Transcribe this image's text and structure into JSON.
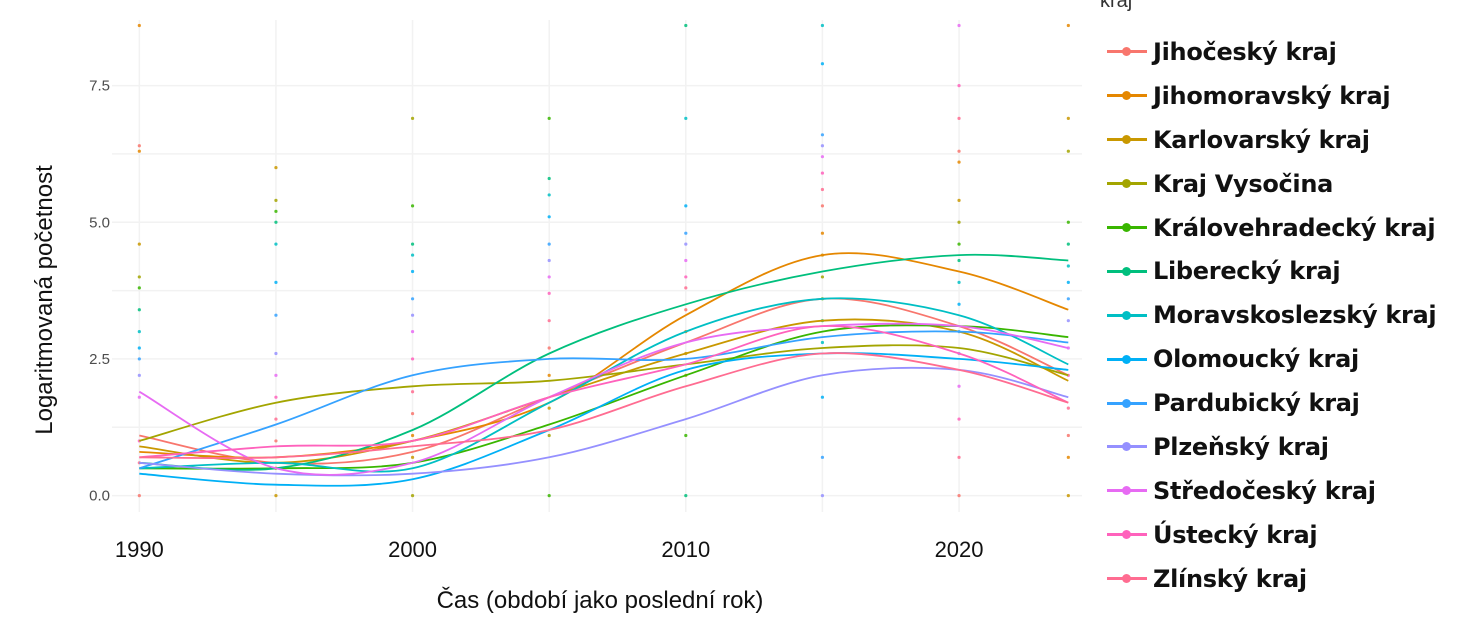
{
  "chart_data": {
    "type": "line",
    "title": "",
    "xlabel": "Čas (období jako poslední rok)",
    "ylabel": "Logaritmovaná početnost",
    "xlim": [
      1989,
      2024.5
    ],
    "ylim": [
      -0.3,
      8.7
    ],
    "x_ticks": [
      "1990",
      "2000",
      "2010",
      "2020"
    ],
    "y_ticks": [
      "0.0",
      "2.5",
      "5.0",
      "7.5"
    ],
    "x": [
      1990,
      1995,
      2000,
      2005,
      2010,
      2015,
      2020,
      2024
    ],
    "legend_title": "kraj",
    "legend_position": "right",
    "grid": true,
    "series": [
      {
        "name": "Jihočeský kraj",
        "color": "#F8766D",
        "values": [
          1.1,
          0.6,
          0.8,
          1.8,
          2.8,
          3.6,
          3.1,
          2.2
        ]
      },
      {
        "name": "Jihomoravský kraj",
        "color": "#E58700",
        "values": [
          0.8,
          0.7,
          1.0,
          1.7,
          3.3,
          4.4,
          4.1,
          3.4
        ]
      },
      {
        "name": "Karlovarský kraj",
        "color": "#C99800",
        "values": [
          0.9,
          0.6,
          1.0,
          1.8,
          2.6,
          3.2,
          3.0,
          2.1
        ]
      },
      {
        "name": "Kraj Vysočina",
        "color": "#A3A500",
        "values": [
          1.0,
          1.7,
          2.0,
          2.1,
          2.4,
          2.7,
          2.7,
          2.2
        ]
      },
      {
        "name": "Královehradecký kraj",
        "color": "#39B600",
        "values": [
          0.5,
          0.5,
          0.6,
          1.3,
          2.2,
          3.0,
          3.1,
          2.9
        ]
      },
      {
        "name": "Liberecký kraj",
        "color": "#00BF7D",
        "values": [
          0.6,
          0.5,
          1.2,
          2.6,
          3.5,
          4.1,
          4.4,
          4.3
        ]
      },
      {
        "name": "Moravskoslezský kraj",
        "color": "#00BFC4",
        "values": [
          0.5,
          0.6,
          0.5,
          1.7,
          3.0,
          3.6,
          3.3,
          2.4
        ]
      },
      {
        "name": "Olomoucký kraj",
        "color": "#00B0F6",
        "values": [
          0.4,
          0.2,
          0.3,
          1.2,
          2.3,
          2.6,
          2.5,
          2.3
        ]
      },
      {
        "name": "Pardubický kraj",
        "color": "#35A2FF",
        "values": [
          0.5,
          1.3,
          2.2,
          2.5,
          2.5,
          2.9,
          3.0,
          2.8
        ]
      },
      {
        "name": "Plzeňský kraj",
        "color": "#9590FF",
        "values": [
          0.6,
          0.4,
          0.4,
          0.7,
          1.4,
          2.2,
          2.3,
          1.8
        ]
      },
      {
        "name": "Středočeský kraj",
        "color": "#E76BF3",
        "values": [
          1.9,
          0.5,
          0.6,
          1.8,
          2.8,
          3.1,
          3.1,
          2.7
        ]
      },
      {
        "name": "Ústecký kraj",
        "color": "#FF62BC",
        "values": [
          0.7,
          0.9,
          1.0,
          1.8,
          2.4,
          3.1,
          2.6,
          1.7
        ]
      },
      {
        "name": "Zlínský kraj",
        "color": "#FF6C91",
        "values": [
          0.7,
          0.7,
          0.9,
          1.2,
          2.0,
          2.6,
          2.3,
          1.7
        ]
      }
    ],
    "scatter_points": [
      [
        1990,
        6.4
      ],
      [
        1990,
        6.3
      ],
      [
        1990,
        4.6
      ],
      [
        1990,
        4.0
      ],
      [
        1990,
        3.8
      ],
      [
        1990,
        3.4
      ],
      [
        1990,
        3.0
      ],
      [
        1990,
        2.7
      ],
      [
        1990,
        2.5
      ],
      [
        1990,
        2.2
      ],
      [
        1990,
        1.8
      ],
      [
        1990,
        1.0
      ],
      [
        1990,
        0.6
      ],
      [
        1990,
        0.0
      ],
      [
        1990,
        8.6
      ],
      [
        1995,
        6.0
      ],
      [
        1995,
        5.4
      ],
      [
        1995,
        5.2
      ],
      [
        1995,
        5.0
      ],
      [
        1995,
        4.6
      ],
      [
        1995,
        3.9
      ],
      [
        1995,
        3.3
      ],
      [
        1995,
        2.6
      ],
      [
        1995,
        2.2
      ],
      [
        1995,
        1.8
      ],
      [
        1995,
        1.4
      ],
      [
        1995,
        1.0
      ],
      [
        1995,
        0.5
      ],
      [
        1995,
        0.0
      ],
      [
        2000,
        6.9
      ],
      [
        2000,
        5.3
      ],
      [
        2000,
        4.6
      ],
      [
        2000,
        4.4
      ],
      [
        2000,
        4.1
      ],
      [
        2000,
        3.6
      ],
      [
        2000,
        3.3
      ],
      [
        2000,
        3.0
      ],
      [
        2000,
        2.5
      ],
      [
        2000,
        1.9
      ],
      [
        2000,
        1.5
      ],
      [
        2000,
        1.1
      ],
      [
        2000,
        0.7
      ],
      [
        2000,
        0.0
      ],
      [
        2005,
        6.9
      ],
      [
        2005,
        5.8
      ],
      [
        2005,
        5.5
      ],
      [
        2005,
        5.1
      ],
      [
        2005,
        4.6
      ],
      [
        2005,
        4.3
      ],
      [
        2005,
        4.0
      ],
      [
        2005,
        3.7
      ],
      [
        2005,
        3.2
      ],
      [
        2005,
        2.7
      ],
      [
        2005,
        2.2
      ],
      [
        2005,
        1.6
      ],
      [
        2005,
        1.1
      ],
      [
        2005,
        0.0
      ],
      [
        2010,
        8.6
      ],
      [
        2010,
        6.9
      ],
      [
        2010,
        5.3
      ],
      [
        2010,
        4.8
      ],
      [
        2010,
        4.6
      ],
      [
        2010,
        4.3
      ],
      [
        2010,
        4.0
      ],
      [
        2010,
        3.8
      ],
      [
        2010,
        3.4
      ],
      [
        2010,
        3.0
      ],
      [
        2010,
        2.6
      ],
      [
        2010,
        2.2
      ],
      [
        2010,
        1.1
      ],
      [
        2010,
        0.0
      ],
      [
        2015,
        8.6
      ],
      [
        2015,
        7.9
      ],
      [
        2015,
        6.6
      ],
      [
        2015,
        6.4
      ],
      [
        2015,
        6.2
      ],
      [
        2015,
        5.9
      ],
      [
        2015,
        5.6
      ],
      [
        2015,
        5.3
      ],
      [
        2015,
        4.8
      ],
      [
        2015,
        4.4
      ],
      [
        2015,
        4.0
      ],
      [
        2015,
        3.6
      ],
      [
        2015,
        3.2
      ],
      [
        2015,
        2.8
      ],
      [
        2015,
        1.8
      ],
      [
        2015,
        0.7
      ],
      [
        2015,
        0.0
      ],
      [
        2020,
        8.6
      ],
      [
        2020,
        7.5
      ],
      [
        2020,
        6.9
      ],
      [
        2020,
        6.3
      ],
      [
        2020,
        6.1
      ],
      [
        2020,
        5.4
      ],
      [
        2020,
        5.0
      ],
      [
        2020,
        4.6
      ],
      [
        2020,
        4.3
      ],
      [
        2020,
        3.9
      ],
      [
        2020,
        3.5
      ],
      [
        2020,
        3.0
      ],
      [
        2020,
        2.6
      ],
      [
        2020,
        2.0
      ],
      [
        2020,
        1.4
      ],
      [
        2020,
        0.7
      ],
      [
        2020,
        0.0
      ],
      [
        2024,
        8.6
      ],
      [
        2024,
        6.9
      ],
      [
        2024,
        6.3
      ],
      [
        2024,
        5.0
      ],
      [
        2024,
        4.6
      ],
      [
        2024,
        4.2
      ],
      [
        2024,
        3.9
      ],
      [
        2024,
        3.6
      ],
      [
        2024,
        3.2
      ],
      [
        2024,
        2.7
      ],
      [
        2024,
        2.2
      ],
      [
        2024,
        1.6
      ],
      [
        2024,
        1.1
      ],
      [
        2024,
        0.7
      ],
      [
        2024,
        0.0
      ]
    ]
  }
}
